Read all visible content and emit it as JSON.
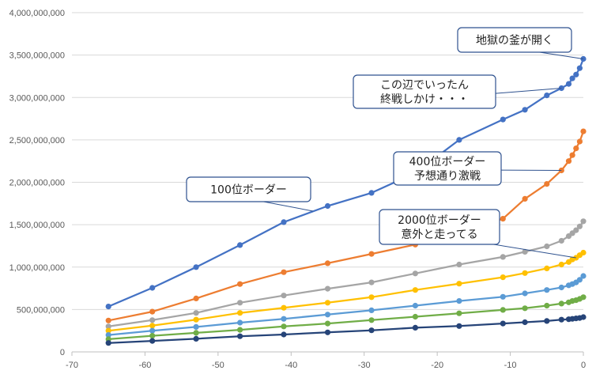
{
  "chart_data": {
    "type": "line",
    "title": "",
    "xlabel": "",
    "ylabel": "",
    "xlim": [
      -70,
      0
    ],
    "ylim": [
      0,
      4000000000
    ],
    "x_ticks": [
      -70,
      -60,
      -50,
      -40,
      -30,
      -20,
      -10,
      0
    ],
    "x_tick_labels": [
      "-70",
      "-60",
      "-50",
      "-40",
      "-30",
      "-20",
      "-10",
      "0"
    ],
    "y_ticks": [
      0,
      500000000,
      1000000000,
      1500000000,
      2000000000,
      2500000000,
      3000000000,
      3500000000,
      4000000000
    ],
    "y_tick_labels": [
      "0",
      "500,000,000",
      "1,000,000,000",
      "1,500,000,000",
      "2,000,000,000",
      "2,500,000,000",
      "3,000,000,000",
      "3,500,000,000",
      "4,000,000,000"
    ],
    "grid": "horizontal",
    "legend": "none",
    "series": [
      {
        "color": "#4472c4",
        "points": [
          [
            -65,
            535000000
          ],
          [
            -59,
            755000000
          ],
          [
            -53,
            1000000000
          ],
          [
            -47,
            1260000000
          ],
          [
            -41,
            1530000000
          ],
          [
            -35,
            1720000000
          ],
          [
            -29,
            1875000000
          ],
          [
            -23,
            2110000000
          ],
          [
            -17,
            2500000000
          ],
          [
            -11,
            2740000000
          ],
          [
            -8,
            2855000000
          ],
          [
            -5,
            3025000000
          ],
          [
            -3,
            3110000000
          ],
          [
            -2,
            3160000000
          ],
          [
            -1.5,
            3225000000
          ],
          [
            -1,
            3270000000
          ],
          [
            -0.5,
            3345000000
          ],
          [
            0,
            3455000000
          ]
        ]
      },
      {
        "color": "#ed7d31",
        "points": [
          [
            -65,
            370000000
          ],
          [
            -59,
            475000000
          ],
          [
            -53,
            630000000
          ],
          [
            -47,
            800000000
          ],
          [
            -41,
            940000000
          ],
          [
            -35,
            1045000000
          ],
          [
            -29,
            1155000000
          ],
          [
            -23,
            1265000000
          ],
          [
            -17,
            1400000000
          ],
          [
            -11,
            1570000000
          ],
          [
            -8,
            1805000000
          ],
          [
            -5,
            1980000000
          ],
          [
            -3,
            2140000000
          ],
          [
            -2,
            2250000000
          ],
          [
            -1.5,
            2320000000
          ],
          [
            -1,
            2400000000
          ],
          [
            -0.5,
            2480000000
          ],
          [
            0,
            2600000000
          ]
        ]
      },
      {
        "color": "#a5a5a5",
        "points": [
          [
            -65,
            300000000
          ],
          [
            -59,
            375000000
          ],
          [
            -53,
            460000000
          ],
          [
            -47,
            580000000
          ],
          [
            -41,
            665000000
          ],
          [
            -35,
            745000000
          ],
          [
            -29,
            820000000
          ],
          [
            -23,
            925000000
          ],
          [
            -17,
            1030000000
          ],
          [
            -11,
            1120000000
          ],
          [
            -8,
            1180000000
          ],
          [
            -5,
            1245000000
          ],
          [
            -3,
            1310000000
          ],
          [
            -2,
            1365000000
          ],
          [
            -1.5,
            1400000000
          ],
          [
            -1,
            1435000000
          ],
          [
            -0.5,
            1480000000
          ],
          [
            0,
            1540000000
          ]
        ]
      },
      {
        "color": "#ffc000",
        "points": [
          [
            -65,
            250000000
          ],
          [
            -59,
            310000000
          ],
          [
            -53,
            380000000
          ],
          [
            -47,
            460000000
          ],
          [
            -41,
            520000000
          ],
          [
            -35,
            580000000
          ],
          [
            -29,
            645000000
          ],
          [
            -23,
            730000000
          ],
          [
            -17,
            805000000
          ],
          [
            -11,
            880000000
          ],
          [
            -8,
            930000000
          ],
          [
            -5,
            985000000
          ],
          [
            -3,
            1030000000
          ],
          [
            -2,
            1060000000
          ],
          [
            -1.5,
            1090000000
          ],
          [
            -1,
            1110000000
          ],
          [
            -0.5,
            1140000000
          ],
          [
            0,
            1170000000
          ]
        ]
      },
      {
        "color": "#5b9bd5",
        "points": [
          [
            -65,
            200000000
          ],
          [
            -59,
            250000000
          ],
          [
            -53,
            295000000
          ],
          [
            -47,
            345000000
          ],
          [
            -41,
            390000000
          ],
          [
            -35,
            440000000
          ],
          [
            -29,
            490000000
          ],
          [
            -23,
            545000000
          ],
          [
            -17,
            600000000
          ],
          [
            -11,
            650000000
          ],
          [
            -8,
            690000000
          ],
          [
            -5,
            730000000
          ],
          [
            -3,
            760000000
          ],
          [
            -2,
            785000000
          ],
          [
            -1.5,
            800000000
          ],
          [
            -1,
            820000000
          ],
          [
            -0.5,
            850000000
          ],
          [
            0,
            895000000
          ]
        ]
      },
      {
        "color": "#70ad47",
        "points": [
          [
            -65,
            150000000
          ],
          [
            -59,
            190000000
          ],
          [
            -53,
            225000000
          ],
          [
            -47,
            260000000
          ],
          [
            -41,
            300000000
          ],
          [
            -35,
            335000000
          ],
          [
            -29,
            375000000
          ],
          [
            -23,
            415000000
          ],
          [
            -17,
            455000000
          ],
          [
            -11,
            495000000
          ],
          [
            -8,
            515000000
          ],
          [
            -5,
            545000000
          ],
          [
            -3,
            570000000
          ],
          [
            -2,
            585000000
          ],
          [
            -1.5,
            600000000
          ],
          [
            -1,
            610000000
          ],
          [
            -0.5,
            625000000
          ],
          [
            0,
            645000000
          ]
        ]
      },
      {
        "color": "#264478",
        "points": [
          [
            -65,
            105000000
          ],
          [
            -59,
            130000000
          ],
          [
            -53,
            155000000
          ],
          [
            -47,
            185000000
          ],
          [
            -41,
            205000000
          ],
          [
            -35,
            230000000
          ],
          [
            -29,
            255000000
          ],
          [
            -23,
            285000000
          ],
          [
            -17,
            305000000
          ],
          [
            -11,
            335000000
          ],
          [
            -8,
            350000000
          ],
          [
            -5,
            365000000
          ],
          [
            -3,
            380000000
          ],
          [
            -2,
            385000000
          ],
          [
            -1.5,
            390000000
          ],
          [
            -1,
            395000000
          ],
          [
            -0.5,
            400000000
          ],
          [
            0,
            410000000
          ]
        ]
      }
    ],
    "annotations": [
      {
        "lines": [
          "地獄の釜が開く"
        ],
        "target_x": 0,
        "target_y": 3455000000,
        "color": "#4472c4"
      },
      {
        "lines": [
          "この辺でいったん",
          "終戦しかけ・・・"
        ],
        "target_x": -3,
        "target_y": 3110000000,
        "color": "#4472c4"
      },
      {
        "lines": [
          "400位ボーダー",
          "予想通り激戦"
        ],
        "target_x": -3,
        "target_y": 2140000000,
        "color": "#ed7d31"
      },
      {
        "lines": [
          "100位ボーダー"
        ],
        "target_x": -37,
        "target_y": 1660000000,
        "color": "#4472c4"
      },
      {
        "lines": [
          "2000位ボーダー",
          "意外と走ってる"
        ],
        "target_x": -1,
        "target_y": 1110000000,
        "color": "#ffc000"
      }
    ]
  }
}
